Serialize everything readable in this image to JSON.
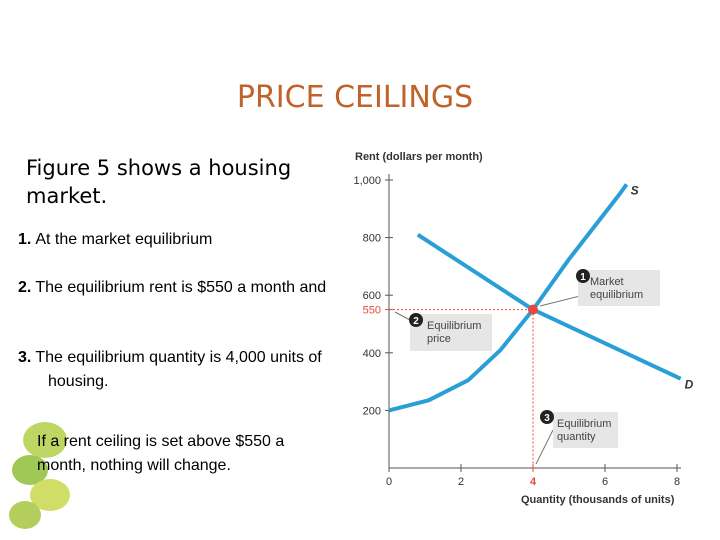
{
  "header": {
    "title": "PRICE CEILINGS"
  },
  "intro": "Figure 5 shows a housing market.",
  "items": [
    {
      "number": "1.",
      "text": "At the market equilibrium"
    },
    {
      "number": "2.",
      "text": "The equilibrium rent is $550 a month and"
    },
    {
      "number": "3.",
      "text": "The equilibrium quantity is 4,000 units of housing."
    }
  ],
  "note": "If a rent ceiling is set above $550 a month, nothing will change.",
  "chart_data": {
    "type": "line",
    "ylabel": "Rent (dollars per month)",
    "xlabel": "Quantity (thousands of units)",
    "xlim": [
      0,
      8
    ],
    "ylim": [
      0,
      1000
    ],
    "xticks": [
      0,
      2,
      4,
      6,
      8
    ],
    "yticks": [
      200,
      400,
      550,
      600,
      800,
      {
        "value": 1000,
        "label": "1,000"
      }
    ],
    "series": [
      {
        "name": "S",
        "color": "#2a9fd6",
        "x": [
          0,
          1.1,
          2.2,
          3.1,
          4,
          5,
          6.4,
          6.6
        ],
        "values": [
          200,
          235,
          305,
          410,
          550,
          725,
          950,
          985
        ]
      },
      {
        "name": "D",
        "color": "#2a9fd6",
        "x": [
          0.8,
          4,
          8.1
        ],
        "values": [
          810,
          550,
          310
        ]
      }
    ],
    "equilibrium": {
      "x": 4,
      "y": 550,
      "color": "#e8493a"
    },
    "annotations": [
      {
        "number": "1",
        "text": "Market equilibrium"
      },
      {
        "number": "2",
        "text": "Equilibrium price"
      },
      {
        "number": "3",
        "text": "Equilibrium quantity"
      }
    ]
  }
}
